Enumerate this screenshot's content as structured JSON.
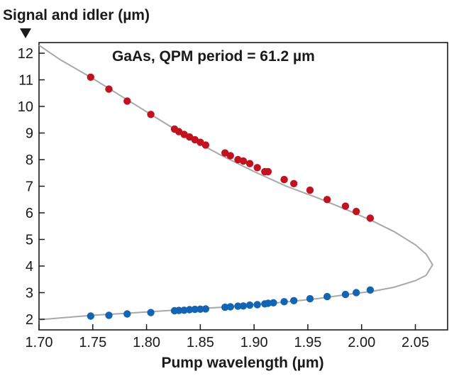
{
  "chart_data": {
    "type": "scatter",
    "title": "",
    "annotation": "GaAs, QPM period = 61.2 µm",
    "xlabel": "Pump wavelength (µm)",
    "ylabel": "Signal and idler (µm)",
    "xlim": [
      1.7,
      2.08
    ],
    "ylim": [
      1.6,
      12.4
    ],
    "xticks": [
      1.7,
      1.75,
      1.8,
      1.85,
      1.9,
      1.95,
      2.0,
      2.05
    ],
    "xtick_labels": [
      "1.70",
      "1.75",
      "1.80",
      "1.85",
      "1.90",
      "1.95",
      "2.00",
      "2.05"
    ],
    "yticks": [
      2,
      3,
      4,
      5,
      6,
      7,
      8,
      9,
      10,
      11,
      12
    ],
    "ytick_labels": [
      "2",
      "3",
      "4",
      "5",
      "6",
      "7",
      "8",
      "9",
      "10",
      "11",
      "12"
    ],
    "grid": false,
    "legend": "none",
    "colors": {
      "signal_idler_upper": "#c0121f",
      "signal_idler_lower": "#1464b4",
      "curve": "#a8a8a8",
      "axes": "#1a1a1a"
    },
    "series": [
      {
        "x": [
          1.748,
          1.765,
          1.782,
          1.804,
          1.826,
          1.83,
          1.835,
          1.84,
          1.845,
          1.85,
          1.855,
          1.873,
          1.878,
          1.885,
          1.89,
          1.896,
          1.903,
          1.91,
          1.913,
          1.928,
          1.937,
          1.952,
          1.968,
          1.985,
          1.995,
          2.008
        ],
        "y": [
          11.1,
          10.65,
          10.2,
          9.7,
          9.15,
          9.05,
          8.95,
          8.85,
          8.75,
          8.65,
          8.55,
          8.25,
          8.15,
          8.0,
          7.95,
          7.85,
          7.7,
          7.55,
          7.55,
          7.25,
          7.1,
          6.85,
          6.5,
          6.25,
          6.05,
          5.8
        ]
      },
      {
        "x": [
          1.748,
          1.765,
          1.782,
          1.804,
          1.826,
          1.83,
          1.835,
          1.84,
          1.845,
          1.85,
          1.855,
          1.873,
          1.878,
          1.885,
          1.89,
          1.896,
          1.903,
          1.91,
          1.913,
          1.918,
          1.928,
          1.937,
          1.952,
          1.968,
          1.985,
          1.995,
          2.008
        ],
        "y": [
          2.12,
          2.15,
          2.2,
          2.25,
          2.32,
          2.33,
          2.34,
          2.36,
          2.37,
          2.38,
          2.39,
          2.45,
          2.47,
          2.49,
          2.5,
          2.53,
          2.55,
          2.58,
          2.6,
          2.62,
          2.66,
          2.7,
          2.77,
          2.85,
          2.93,
          3.0,
          3.1
        ]
      }
    ],
    "curve": {
      "x": [
        1.7,
        1.72,
        1.75,
        1.78,
        1.81,
        1.84,
        1.87,
        1.9,
        1.93,
        1.96,
        1.99,
        2.01,
        2.03,
        2.05,
        2.06,
        2.066,
        2.06,
        2.05,
        2.03,
        2.01,
        1.99,
        1.96,
        1.93,
        1.9,
        1.87,
        1.84,
        1.81,
        1.78,
        1.75,
        1.72,
        1.7
      ],
      "y": [
        12.3,
        11.75,
        11.05,
        10.3,
        9.55,
        8.8,
        8.15,
        7.55,
        7.0,
        6.55,
        6.05,
        5.7,
        5.3,
        4.8,
        4.45,
        4.05,
        3.65,
        3.45,
        3.2,
        3.05,
        2.95,
        2.78,
        2.65,
        2.55,
        2.45,
        2.38,
        2.3,
        2.22,
        2.15,
        2.05,
        1.98
      ]
    }
  }
}
